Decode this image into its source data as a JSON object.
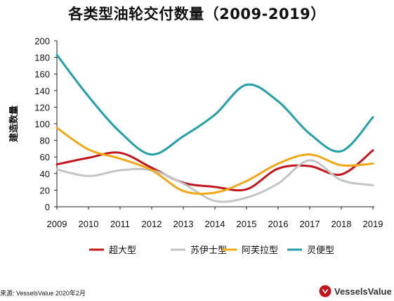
{
  "chart_data": {
    "type": "line",
    "title": "各类型油轮交付数量（2009-2019）",
    "ylabel": "建造数量",
    "xlabel": "",
    "categories": [
      "2009",
      "2010",
      "2011",
      "2012",
      "2013",
      "2014",
      "2015",
      "2016",
      "2017",
      "2018",
      "2019"
    ],
    "yticks": [
      "0",
      "20",
      "40",
      "60",
      "80",
      "100",
      "120",
      "140",
      "160",
      "180",
      "200"
    ],
    "ylim": [
      0,
      200
    ],
    "grid": false,
    "legend_position": "bottom",
    "series": [
      {
        "name": "超大型",
        "color": "#c0161c",
        "values": [
          51,
          59,
          65,
          47,
          29,
          24,
          21,
          46,
          49,
          39,
          68
        ]
      },
      {
        "name": "苏伊士型",
        "color": "#c4c4c4",
        "values": [
          45,
          37,
          44,
          44,
          28,
          7,
          11,
          28,
          56,
          32,
          26
        ]
      },
      {
        "name": "阿芙拉型",
        "color": "#f0a818",
        "values": [
          95,
          69,
          58,
          44,
          19,
          17,
          31,
          52,
          63,
          50,
          52
        ]
      },
      {
        "name": "灵便型",
        "color": "#22a0a6",
        "values": [
          183,
          133,
          90,
          63,
          85,
          111,
          147,
          127,
          88,
          67,
          108
        ]
      }
    ]
  },
  "source_text": "来源: VesselsValue 2020年2月",
  "logo_text": "VesselsValue",
  "brand_color": "#c0161c"
}
